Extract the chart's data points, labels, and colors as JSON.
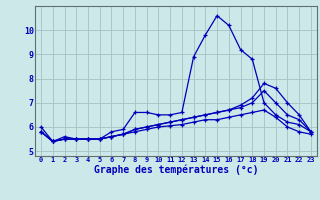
{
  "xlabel": "Graphe des températures (°c)",
  "background_color": "#cce8e8",
  "grid_color": "#aac8c8",
  "line_color": "#0000bb",
  "xlim": [
    -0.5,
    23.5
  ],
  "ylim": [
    4.8,
    11.0
  ],
  "xticks": [
    0,
    1,
    2,
    3,
    4,
    5,
    6,
    7,
    8,
    9,
    10,
    11,
    12,
    13,
    14,
    15,
    16,
    17,
    18,
    19,
    20,
    21,
    22,
    23
  ],
  "yticks": [
    5,
    6,
    7,
    8,
    9,
    10
  ],
  "hours": [
    0,
    1,
    2,
    3,
    4,
    5,
    6,
    7,
    8,
    9,
    10,
    11,
    12,
    13,
    14,
    15,
    16,
    17,
    18,
    19,
    20,
    21,
    22,
    23
  ],
  "series1": [
    6.0,
    5.4,
    5.6,
    5.5,
    5.5,
    5.5,
    5.8,
    5.9,
    6.6,
    6.6,
    6.5,
    6.5,
    6.6,
    8.9,
    9.8,
    10.6,
    10.2,
    9.2,
    8.8,
    7.0,
    6.5,
    6.2,
    6.1,
    5.8
  ],
  "series2": [
    5.8,
    5.4,
    5.5,
    5.5,
    5.5,
    5.5,
    5.6,
    5.7,
    5.9,
    6.0,
    6.1,
    6.2,
    6.3,
    6.4,
    6.5,
    6.6,
    6.7,
    6.8,
    7.0,
    7.5,
    7.0,
    6.5,
    6.3,
    5.8
  ],
  "series3": [
    5.8,
    5.4,
    5.5,
    5.5,
    5.5,
    5.5,
    5.6,
    5.7,
    5.9,
    6.0,
    6.1,
    6.2,
    6.3,
    6.4,
    6.5,
    6.6,
    6.7,
    6.9,
    7.2,
    7.8,
    7.6,
    7.0,
    6.5,
    5.8
  ],
  "series4": [
    5.8,
    5.4,
    5.5,
    5.5,
    5.5,
    5.5,
    5.6,
    5.7,
    5.8,
    5.9,
    6.0,
    6.05,
    6.1,
    6.2,
    6.3,
    6.3,
    6.4,
    6.5,
    6.6,
    6.7,
    6.4,
    6.0,
    5.8,
    5.7
  ]
}
